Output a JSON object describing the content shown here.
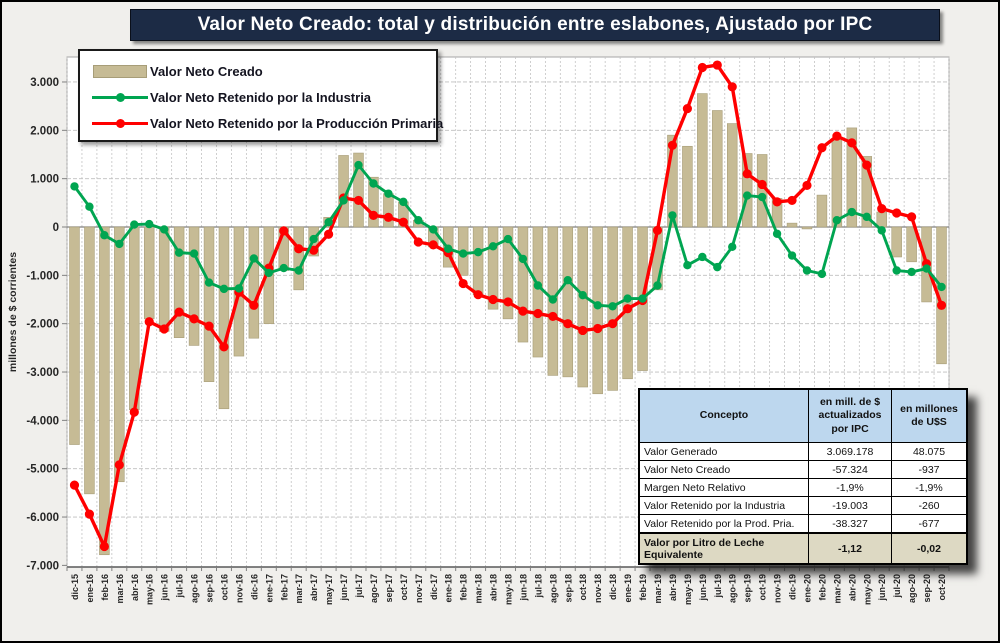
{
  "title": "Valor Neto Creado: total y distribución  entre eslabones, Ajustado  por IPC",
  "y_axis_title": "millones de $ corrientes",
  "colors": {
    "bar": "#c6bb95",
    "bar_border": "#a79d78",
    "green": "#00a551",
    "red": "#ff0000",
    "title_bg": "#1c2b45",
    "table_header_bg": "#bdd7ee",
    "table_footer_bg": "#ddd9c3",
    "zero_line": "#808080",
    "gridline": "#c3c3c3"
  },
  "legend": [
    {
      "label": "Valor Neto Creado",
      "type": "bar",
      "color": "#c6bb95"
    },
    {
      "label": "Valor Neto Retenido por la Industria",
      "type": "line",
      "color": "#00a551"
    },
    {
      "label": "Valor Neto Retenido por la Producción Primaria",
      "type": "line",
      "color": "#ff0000"
    }
  ],
  "chart_data": {
    "type": "bar+line combo",
    "ylim": [
      -7000,
      3000
    ],
    "ytick_step": 1000,
    "grid": true,
    "legend_position": "top-left",
    "categories": [
      "dic-15",
      "ene-16",
      "feb-16",
      "mar-16",
      "abr-16",
      "may-16",
      "jun-16",
      "jul-16",
      "ago-16",
      "sep-16",
      "oct-16",
      "nov-16",
      "dic-16",
      "ene-17",
      "feb-17",
      "mar-17",
      "abr-17",
      "may-17",
      "jun-17",
      "jul-17",
      "ago-17",
      "sep-17",
      "oct-17",
      "nov-17",
      "dic-17",
      "ene-18",
      "feb-18",
      "mar-18",
      "abr-18",
      "may-18",
      "jun-18",
      "jul-18",
      "ago-18",
      "sep-18",
      "oct-18",
      "nov-18",
      "dic-18",
      "ene-19",
      "feb-19",
      "mar-19",
      "abr-19",
      "may-19",
      "jun-19",
      "jul-19",
      "ago-19",
      "sep-19",
      "oct-19",
      "nov-19",
      "dic-19",
      "ene-20",
      "feb-20",
      "mar-20",
      "abr-20",
      "may-20",
      "jun-20",
      "jul-20",
      "ago-20",
      "sep-20",
      "oct-20"
    ],
    "series": [
      {
        "name": "Valor Neto Creado",
        "type": "bar",
        "values": [
          -4500,
          -5520,
          -6780,
          -5270,
          -3780,
          -1900,
          -2160,
          -2290,
          -2450,
          -3200,
          -3760,
          -2670,
          -2300,
          -2000,
          -900,
          -1300,
          -600,
          200,
          1480,
          1530,
          1030,
          690,
          520,
          140,
          -410,
          -830,
          -1000,
          -1400,
          -1700,
          -1900,
          -2380,
          -2690,
          -3070,
          -3100,
          -3310,
          -3450,
          -3380,
          -3140,
          -2970,
          -1300,
          1900,
          1670,
          2760,
          2410,
          2140,
          1520,
          1500,
          590,
          80,
          -40,
          660,
          1830,
          2050,
          1460,
          310,
          -620,
          -720,
          -1550,
          -2830
        ]
      },
      {
        "name": "Valor Neto Retenido por la Industria",
        "type": "line",
        "values": [
          840,
          420,
          -170,
          -350,
          50,
          60,
          -50,
          -530,
          -550,
          -1150,
          -1280,
          -1270,
          -650,
          -950,
          -850,
          -900,
          -250,
          100,
          550,
          1280,
          900,
          690,
          520,
          140,
          -50,
          -450,
          -550,
          -520,
          -400,
          -250,
          -660,
          -1210,
          -1500,
          -1100,
          -1410,
          -1620,
          -1640,
          -1480,
          -1480,
          -1210,
          240,
          -790,
          -620,
          -830,
          -410,
          650,
          620,
          -140,
          -590,
          -900,
          -970,
          140,
          310,
          210,
          -70,
          -900,
          -930,
          -860,
          -1240
        ]
      },
      {
        "name": "Valor Neto Retenido por la Producción Primaria",
        "type": "line",
        "values": [
          -5340,
          -5940,
          -6610,
          -4920,
          -3830,
          -1960,
          -2110,
          -1760,
          -1900,
          -2050,
          -2480,
          -1350,
          -1620,
          -850,
          -80,
          -450,
          -480,
          -150,
          600,
          550,
          240,
          200,
          100,
          -310,
          -370,
          -530,
          -1170,
          -1400,
          -1500,
          -1550,
          -1740,
          -1790,
          -1850,
          -2000,
          -2140,
          -2100,
          -2000,
          -1690,
          -1520,
          -70,
          1690,
          2450,
          3300,
          3350,
          2900,
          1100,
          880,
          520,
          550,
          860,
          1640,
          1880,
          1740,
          1280,
          380,
          290,
          210,
          -760,
          -1620
        ]
      }
    ]
  },
  "table": {
    "headers": [
      "Concepto",
      "en mill. de $ actualizados por IPC",
      "en millones de U$S"
    ],
    "rows": [
      [
        "Valor Generado",
        "3.069.178",
        "48.075"
      ],
      [
        "Valor Neto Creado",
        "-57.324",
        "-937"
      ],
      [
        "Margen Neto Relativo",
        "-1,9%",
        "-1,9%"
      ],
      [
        "Valor Retenido por la Industria",
        "-19.003",
        "-260"
      ],
      [
        "Valor Retenido por la Prod. Pria.",
        "-38.327",
        "-677"
      ]
    ],
    "footer": [
      "Valor por Litro de Leche Equivalente",
      "-1,12",
      "-0,02"
    ]
  }
}
